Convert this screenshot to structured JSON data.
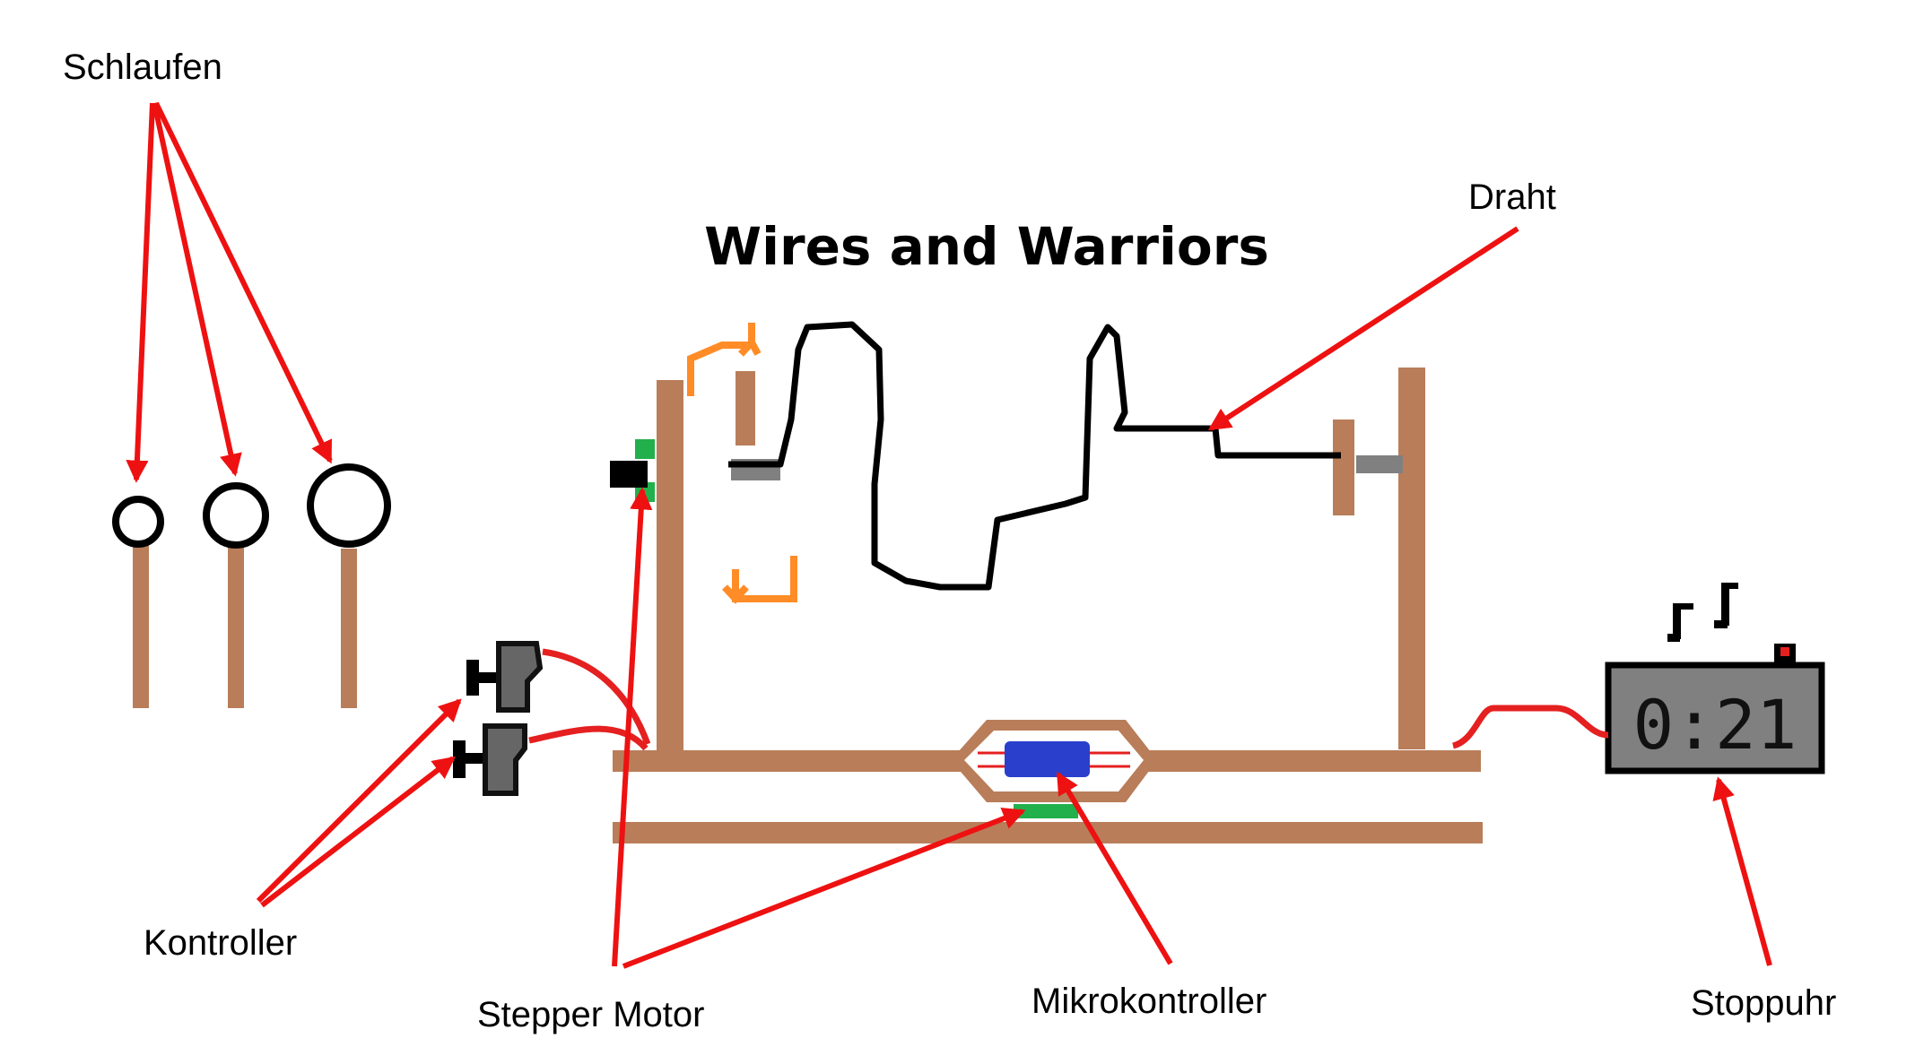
{
  "title": "Wires and Warriors",
  "labels": {
    "loops": "Schlaufen",
    "wire": "Draht",
    "controllers": "Kontroller",
    "stepper_motor": "Stepper Motor",
    "microcontroller": "Mikrokontroller",
    "stopwatch": "Stoppuhr"
  },
  "stopwatch_display": "0:21",
  "colors": {
    "wood": "#b97d59",
    "arrow": "#ee1111",
    "cable": "#e52020",
    "wire": "#000000",
    "motor": "#22b04c",
    "micro": "#2a3fcc",
    "gray": "#808080",
    "rotation": "#ff8c26"
  }
}
